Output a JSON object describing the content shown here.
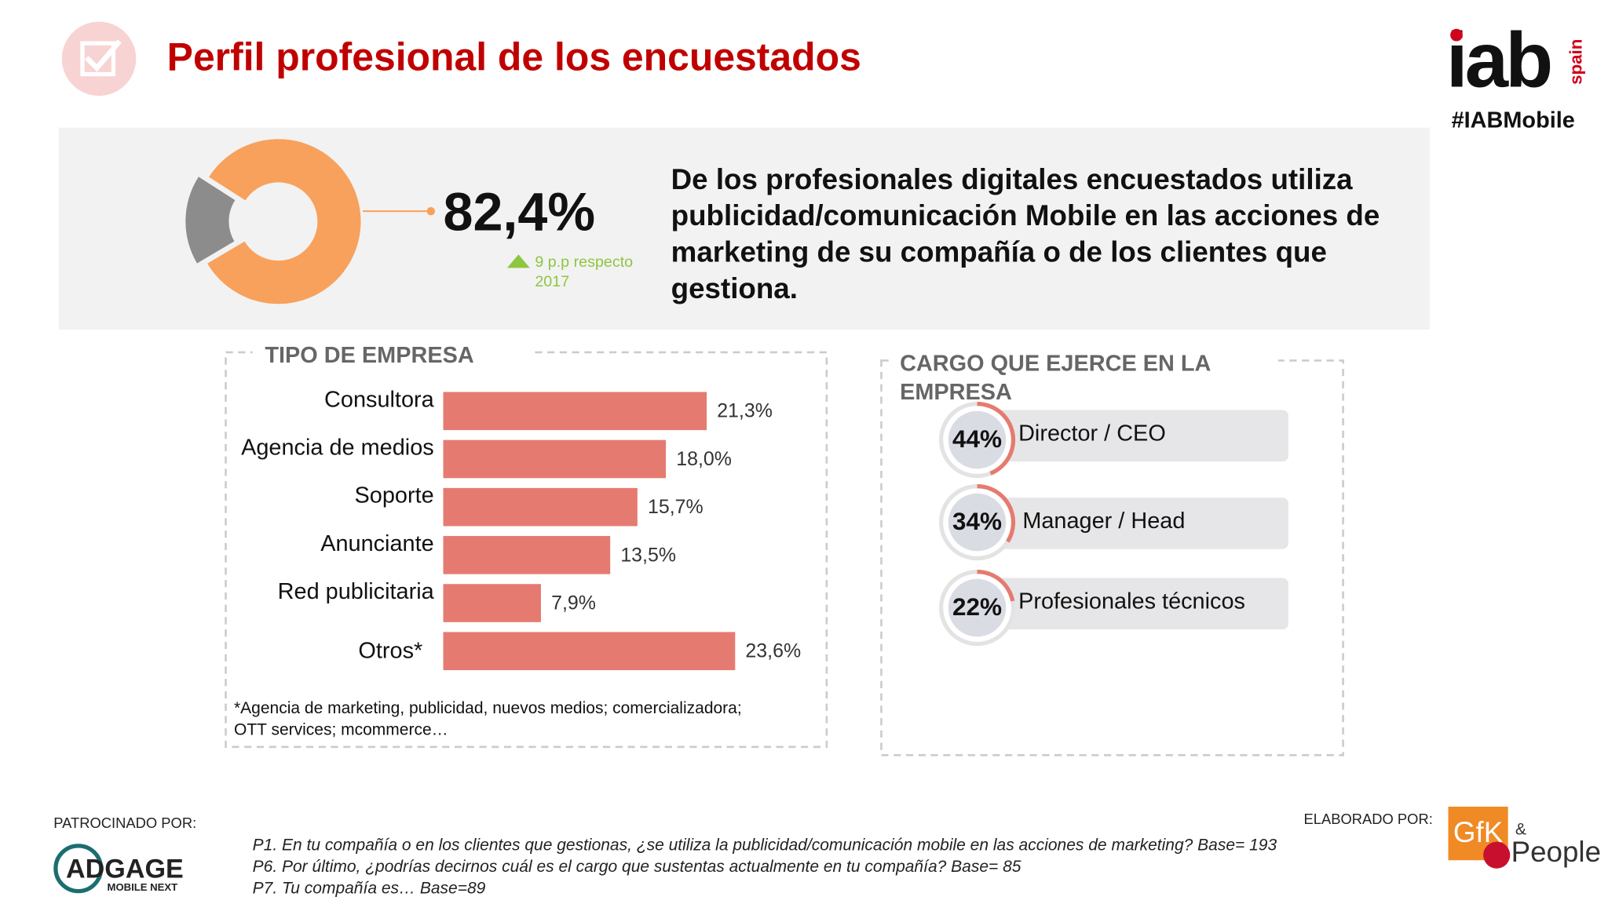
{
  "header": {
    "title": "Perfil profesional de los encuestados",
    "logo": "iab",
    "logo_country": "spain",
    "hashtag": "#IABMobile"
  },
  "highlight": {
    "lines": [
      "De los profesionales digitales encuestados utiliza",
      "publicidad/comunicación Mobile en las acciones de",
      "marketing de su compañía o de los clientes que",
      "gestiona."
    ],
    "note": [
      "9 p.p respecto",
      "2017"
    ]
  },
  "chart_data": [
    {
      "type": "pie",
      "values": [
        82.4,
        17.6
      ],
      "value_labels": [
        "82,4%",
        null
      ],
      "colors": [
        "#f8a15c",
        "#8c8c8c"
      ]
    },
    {
      "type": "hbar",
      "title": "TIPO DE EMPRESA",
      "categories": [
        "Consultora",
        "Agencia de medios",
        "Soporte",
        "Anunciante",
        "Red publicitaria",
        "Otros*"
      ],
      "values": [
        21.3,
        18.0,
        15.7,
        13.5,
        7.9,
        23.6
      ],
      "value_labels": [
        "21,3%",
        "18,0%",
        "15,7%",
        "13,5%",
        "7,9%",
        "23,6%"
      ],
      "color": "#e57b70",
      "xlim": [
        0,
        30
      ],
      "footnote": [
        "*Agencia de marketing, publicidad, nuevos medios; comercializadora;",
        "OTT services; mcommerce…"
      ]
    },
    {
      "type": "ring",
      "title": [
        "CARGO QUE EJERCE EN LA",
        "EMPRESA"
      ],
      "categories": [
        "Director / CEO",
        "Manager / Head",
        "Profesionales técnicos"
      ],
      "values": [
        44,
        34,
        22
      ],
      "value_labels": [
        "44%",
        "34%",
        "22%"
      ],
      "color": "#e57b70"
    }
  ],
  "footer": {
    "sponsor_label": "PATROCINADO POR:",
    "sponsor": "ADGAGE",
    "sponsor_sub": "MOBILE NEXT",
    "questions": [
      "P1. En tu compañía o en los clientes que gestionas, ¿se utiliza la publicidad/comunicación mobile en las acciones de marketing? Base= 193",
      "P6. Por último, ¿podrías decirnos cuál es el cargo que sustentas actualmente en tu compañía? Base= 85",
      "P7. Tu compañía es… Base=89"
    ],
    "maker_label": "ELABORADO POR:",
    "maker": "GfK",
    "maker_amp": "&",
    "maker_people": "People"
  }
}
